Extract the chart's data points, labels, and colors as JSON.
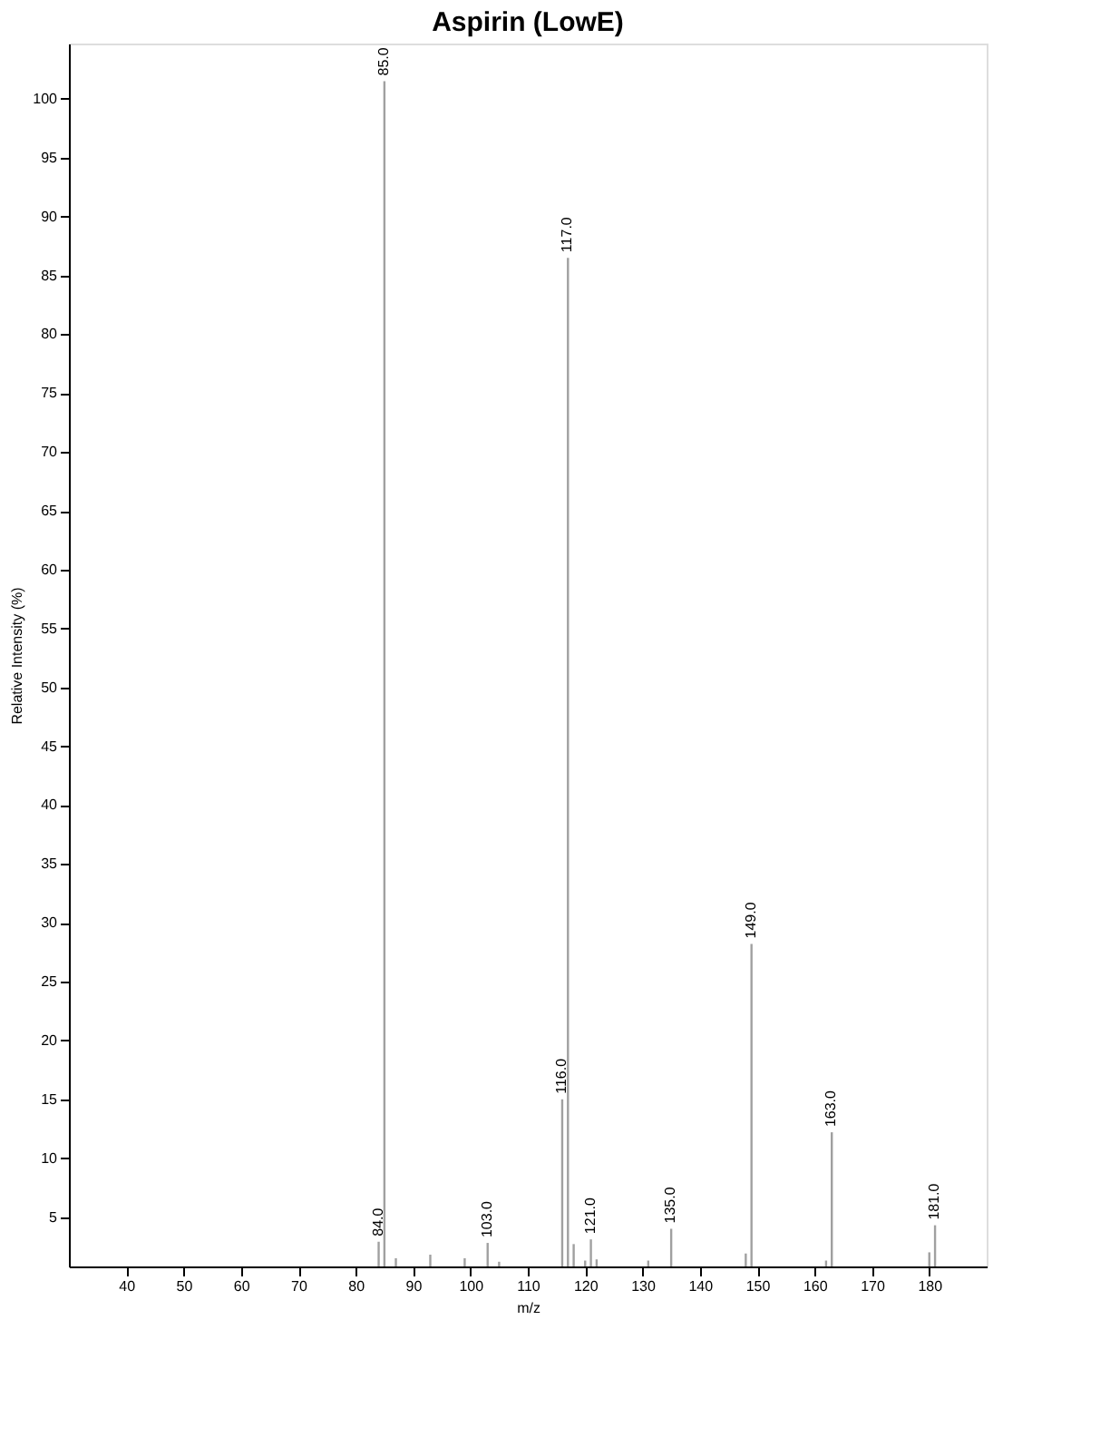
{
  "chart_data": {
    "type": "bar",
    "title": "Aspirin (LowE)",
    "xlabel": "m/z",
    "ylabel": "Relative Intensity (%)",
    "x": [
      84,
      85,
      87,
      93,
      99,
      103,
      105,
      116,
      117,
      118,
      120,
      121,
      122,
      131,
      135,
      148,
      149,
      162,
      163,
      180,
      181
    ],
    "values": [
      2.9,
      101.5,
      1.5,
      1.8,
      1.5,
      2.8,
      1.2,
      15.0,
      86.5,
      2.7,
      1.3,
      3.1,
      1.4,
      1.3,
      4.0,
      1.9,
      28.2,
      1.3,
      12.2,
      2.0,
      4.3
    ],
    "color": "#a0a0a0",
    "xlim": [
      30,
      190
    ],
    "xticks": [
      40,
      50,
      60,
      70,
      80,
      90,
      100,
      110,
      120,
      130,
      140,
      150,
      160,
      170,
      180
    ],
    "ylim": [
      0.8,
      104.7
    ],
    "yticks": [
      5,
      10,
      15,
      20,
      25,
      30,
      35,
      40,
      45,
      50,
      55,
      60,
      65,
      70,
      75,
      80,
      85,
      90,
      95,
      100
    ],
    "grid": false,
    "annotations": [
      {
        "text": "84.0",
        "x": 84,
        "y": 2.9
      },
      {
        "text": "85.0",
        "x": 85,
        "y": 101.5
      },
      {
        "text": "103.0",
        "x": 103,
        "y": 2.8
      },
      {
        "text": "116.0",
        "x": 116,
        "y": 15.0
      },
      {
        "text": "117.0",
        "x": 117,
        "y": 86.5
      },
      {
        "text": "121.0",
        "x": 121,
        "y": 3.1
      },
      {
        "text": "135.0",
        "x": 135,
        "y": 4.0
      },
      {
        "text": "149.0",
        "x": 149,
        "y": 28.2
      },
      {
        "text": "163.0",
        "x": 163,
        "y": 12.2
      },
      {
        "text": "181.0",
        "x": 181,
        "y": 4.3
      }
    ]
  }
}
